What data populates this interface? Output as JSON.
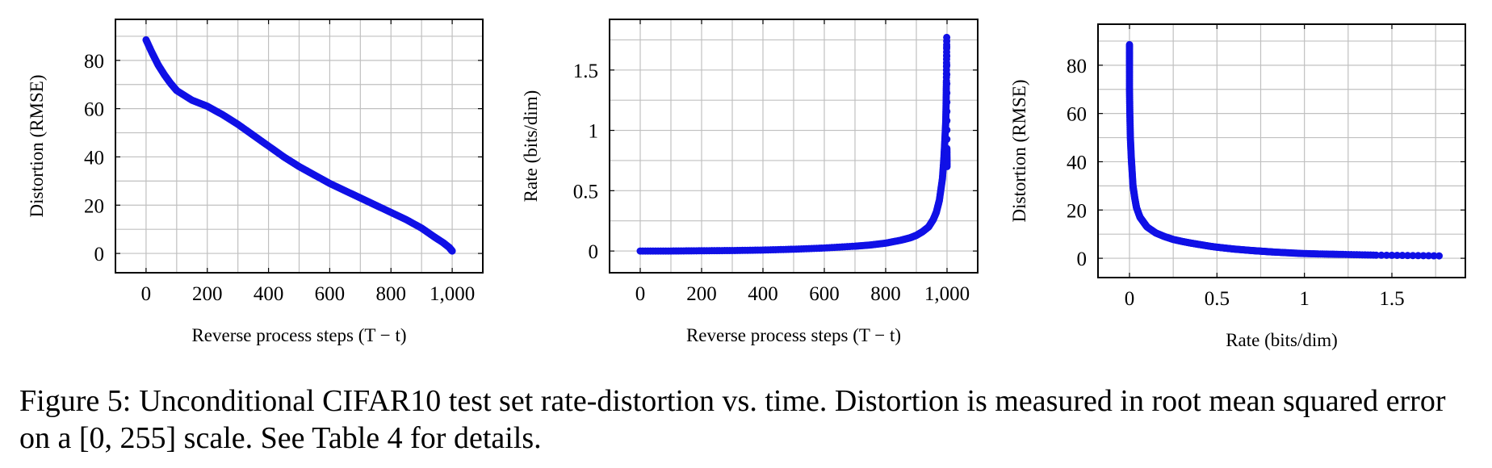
{
  "figure": {
    "caption_label": "Figure 5:",
    "caption_text": "Unconditional CIFAR10 test set rate-distortion vs. time. Distortion is measured in root mean squared error on a [0, 255] scale. See Table 4 for details.",
    "marker_color": "#1010e6",
    "grid_color": "#c0c0c0"
  },
  "chart_data": [
    {
      "type": "scatter",
      "xlabel": "Reverse process steps (T − t)",
      "ylabel": "Distortion (RMSE)",
      "xlim": [
        -100,
        1100
      ],
      "ylim": [
        -8,
        97
      ],
      "xticks": [
        0,
        200,
        400,
        600,
        800,
        1000
      ],
      "xtick_labels": [
        "0",
        "200",
        "400",
        "600",
        "800",
        "1,000"
      ],
      "yticks": [
        0,
        20,
        40,
        60,
        80
      ],
      "ytick_labels": [
        "0",
        "20",
        "40",
        "60",
        "80"
      ],
      "grid": true,
      "series": [
        {
          "x": [
            0,
            20,
            40,
            60,
            80,
            100,
            150,
            200,
            250,
            300,
            350,
            400,
            450,
            500,
            550,
            600,
            650,
            700,
            750,
            800,
            850,
            900,
            940,
            970,
            990,
            1000
          ],
          "y": [
            88.5,
            83,
            78,
            74,
            70.5,
            67.5,
            63.5,
            61,
            57.5,
            53.5,
            49,
            44.5,
            40,
            36,
            32.5,
            29,
            26,
            23,
            20,
            17,
            14,
            10.5,
            7,
            4.5,
            2.5,
            1
          ]
        }
      ]
    },
    {
      "type": "scatter",
      "xlabel": "Reverse process steps (T − t)",
      "ylabel": "Rate (bits/dim)",
      "xlim": [
        -100,
        1100
      ],
      "ylim": [
        -0.18,
        1.92
      ],
      "xticks": [
        0,
        200,
        400,
        600,
        800,
        1000
      ],
      "xtick_labels": [
        "0",
        "200",
        "400",
        "600",
        "800",
        "1,000"
      ],
      "yticks": [
        0,
        0.5,
        1,
        1.5
      ],
      "ytick_labels": [
        "0",
        "0.5",
        "1",
        "1.5"
      ],
      "grid": true,
      "series": [
        {
          "x": [
            0,
            100,
            200,
            300,
            400,
            500,
            600,
            700,
            750,
            800,
            850,
            880,
            900,
            920,
            940,
            955,
            965,
            975,
            985,
            990,
            993,
            996,
            997,
            998,
            999,
            999.5,
            1000
          ],
          "y": [
            0.0,
            0.0,
            0.002,
            0.004,
            0.008,
            0.015,
            0.025,
            0.04,
            0.05,
            0.065,
            0.09,
            0.11,
            0.13,
            0.16,
            0.2,
            0.26,
            0.32,
            0.42,
            0.6,
            0.78,
            0.92,
            1.08,
            1.22,
            1.41,
            1.77,
            0.85,
            0.7
          ]
        }
      ]
    },
    {
      "type": "scatter",
      "xlabel": "Rate (bits/dim)",
      "ylabel": "Distortion (RMSE)",
      "xlim": [
        -0.18,
        1.92
      ],
      "ylim": [
        -8,
        97
      ],
      "xticks": [
        0,
        0.5,
        1,
        1.5
      ],
      "xtick_labels": [
        "0",
        "0.5",
        "1",
        "1.5"
      ],
      "yticks": [
        0,
        20,
        40,
        60,
        80
      ],
      "ytick_labels": [
        "0",
        "20",
        "40",
        "60",
        "80"
      ],
      "grid": true,
      "series": [
        {
          "x": [
            0,
            0,
            0,
            0.002,
            0.005,
            0.01,
            0.015,
            0.02,
            0.03,
            0.04,
            0.06,
            0.08,
            0.1,
            0.15,
            0.2,
            0.25,
            0.3,
            0.35,
            0.4,
            0.45,
            0.5,
            0.55,
            0.6,
            0.65,
            0.7,
            0.74,
            0.78,
            0.82,
            0.9,
            0.98,
            1.08,
            1.22,
            1.41,
            1.77
          ],
          "y": [
            88.5,
            80,
            70,
            60,
            50,
            42,
            36,
            30,
            25,
            21,
            17,
            15,
            13,
            10.5,
            9,
            7.8,
            7,
            6.3,
            5.7,
            5.1,
            4.6,
            4.2,
            3.8,
            3.5,
            3.2,
            3.0,
            2.8,
            2.6,
            2.3,
            2.0,
            1.8,
            1.6,
            1.3,
            1.0
          ]
        }
      ]
    }
  ]
}
